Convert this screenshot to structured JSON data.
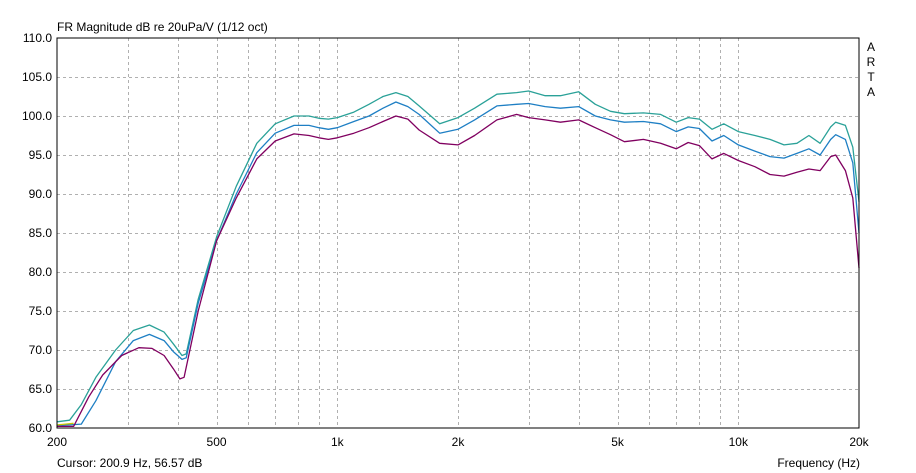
{
  "chart_data": {
    "type": "line",
    "title": "FR Magnitude dB re 20uPa/V (1/12 oct)",
    "brand": "ARTA",
    "xlabel": "Frequency (Hz)",
    "cursor": "Cursor: 200.9 Hz, 56.57 dB",
    "x_scale": "log",
    "xlim": [
      200,
      20000
    ],
    "ylim": [
      60,
      110
    ],
    "x_ticks": [
      {
        "value": 200,
        "label": "200"
      },
      {
        "value": 500,
        "label": "500"
      },
      {
        "value": 1000,
        "label": "1k"
      },
      {
        "value": 2000,
        "label": "2k"
      },
      {
        "value": 5000,
        "label": "5k"
      },
      {
        "value": 10000,
        "label": "10k"
      },
      {
        "value": 20000,
        "label": "20k"
      }
    ],
    "y_ticks": [
      {
        "value": 60,
        "label": "60.0"
      },
      {
        "value": 65,
        "label": "65.0"
      },
      {
        "value": 70,
        "label": "70.0"
      },
      {
        "value": 75,
        "label": "75.0"
      },
      {
        "value": 80,
        "label": "80.0"
      },
      {
        "value": 85,
        "label": "85.0"
      },
      {
        "value": 90,
        "label": "90.0"
      },
      {
        "value": 95,
        "label": "95.0"
      },
      {
        "value": 100,
        "label": "100.0"
      },
      {
        "value": 105,
        "label": "105.0"
      },
      {
        "value": 110,
        "label": "110.0"
      }
    ],
    "grid": true,
    "series": [
      {
        "color": "#2aa198",
        "x": [
          200,
          215,
          230,
          250,
          280,
          310,
          340,
          370,
          390,
          410,
          420,
          450,
          500,
          560,
          630,
          700,
          780,
          850,
          900,
          950,
          1000,
          1100,
          1200,
          1300,
          1400,
          1500,
          1600,
          1800,
          2000,
          2200,
          2500,
          2800,
          3000,
          3300,
          3600,
          4000,
          4400,
          4800,
          5200,
          5800,
          6400,
          7000,
          7500,
          8000,
          8600,
          9200,
          10000,
          11000,
          12000,
          13000,
          14000,
          15000,
          16000,
          17000,
          17500,
          18500,
          19300,
          20000
        ],
        "y": [
          60.8,
          61.0,
          63.0,
          66.5,
          70.0,
          72.5,
          73.2,
          72.3,
          70.8,
          69.3,
          69.5,
          76.5,
          84.5,
          91.0,
          96.5,
          99.0,
          100.0,
          100.0,
          99.7,
          99.6,
          99.8,
          100.5,
          101.5,
          102.5,
          103.0,
          102.5,
          101.3,
          99.0,
          99.8,
          101.0,
          102.8,
          103.0,
          103.2,
          102.6,
          102.6,
          103.1,
          101.5,
          100.6,
          100.3,
          100.4,
          100.2,
          99.2,
          99.8,
          99.6,
          98.3,
          99.0,
          98.0,
          97.5,
          97.0,
          96.3,
          96.5,
          97.5,
          96.5,
          98.6,
          99.2,
          98.8,
          96.0,
          89.0
        ]
      },
      {
        "color": "#1e7fc4",
        "x": [
          200,
          230,
          250,
          280,
          310,
          340,
          370,
          390,
          410,
          420,
          450,
          500,
          560,
          630,
          700,
          780,
          850,
          900,
          950,
          1000,
          1100,
          1200,
          1300,
          1400,
          1500,
          1600,
          1800,
          2000,
          2200,
          2500,
          2800,
          3000,
          3300,
          3600,
          4000,
          4400,
          4800,
          5200,
          5800,
          6400,
          7000,
          7500,
          8000,
          8600,
          9200,
          10000,
          11000,
          12000,
          13000,
          14000,
          15000,
          16000,
          17000,
          17500,
          18500,
          19300,
          20000
        ],
        "y": [
          60.3,
          60.5,
          63.5,
          68.5,
          71.2,
          72.0,
          71.2,
          69.8,
          68.8,
          69.0,
          76.0,
          84.0,
          90.0,
          95.3,
          97.8,
          98.8,
          98.8,
          98.5,
          98.3,
          98.5,
          99.3,
          100.0,
          101.0,
          101.8,
          101.2,
          100.2,
          97.8,
          98.3,
          99.5,
          101.3,
          101.5,
          101.6,
          101.2,
          101.0,
          101.2,
          100.0,
          99.5,
          99.2,
          99.3,
          99.0,
          98.0,
          98.6,
          98.4,
          96.8,
          97.5,
          96.3,
          95.5,
          94.8,
          94.6,
          95.2,
          95.8,
          95.0,
          97.0,
          97.6,
          97.0,
          94.0,
          85.0
        ]
      },
      {
        "color": "#800060",
        "x": [
          200,
          220,
          240,
          260,
          290,
          320,
          345,
          370,
          390,
          405,
          415,
          450,
          500,
          560,
          630,
          700,
          780,
          850,
          900,
          950,
          1000,
          1100,
          1200,
          1300,
          1400,
          1500,
          1600,
          1800,
          2000,
          2200,
          2500,
          2800,
          3000,
          3300,
          3600,
          4000,
          4400,
          4800,
          5200,
          5800,
          6400,
          7000,
          7500,
          8000,
          8600,
          9200,
          10000,
          11000,
          12000,
          13000,
          14000,
          15000,
          16000,
          17000,
          17500,
          18500,
          19300,
          20000
        ],
        "y": [
          60.2,
          60.2,
          64.0,
          66.8,
          69.3,
          70.3,
          70.2,
          69.3,
          67.6,
          66.3,
          66.5,
          75.0,
          84.0,
          89.5,
          94.5,
          96.8,
          97.7,
          97.5,
          97.2,
          97.0,
          97.2,
          97.8,
          98.5,
          99.3,
          100.0,
          99.6,
          98.2,
          96.5,
          96.3,
          97.5,
          99.5,
          100.2,
          99.8,
          99.5,
          99.2,
          99.5,
          98.5,
          97.6,
          96.7,
          97.0,
          96.5,
          95.8,
          96.6,
          96.2,
          94.5,
          95.2,
          94.3,
          93.5,
          92.5,
          92.3,
          92.8,
          93.2,
          93.0,
          94.8,
          95.0,
          93.0,
          89.5,
          80.5
        ]
      },
      {
        "color": "#c8c800",
        "x": [
          200,
          210,
          220
        ],
        "y": [
          60.4,
          60.5,
          60.6
        ]
      }
    ]
  }
}
